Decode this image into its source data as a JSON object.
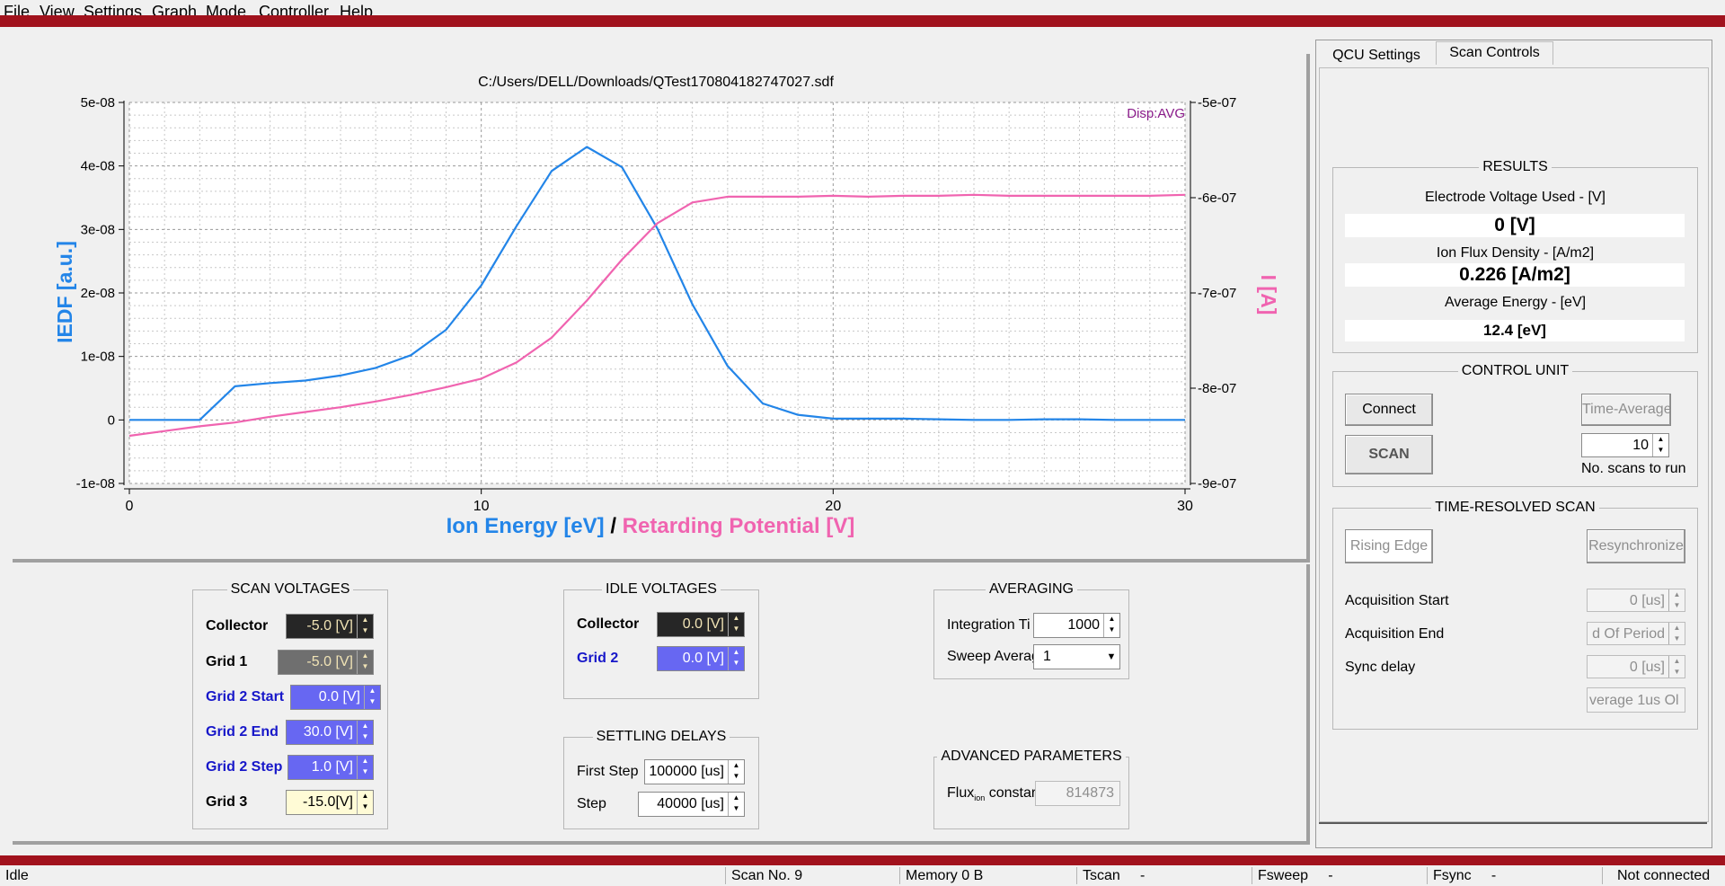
{
  "menu": [
    "File",
    "View",
    "Settings",
    "Graph",
    "Mode",
    "Controller",
    "Help"
  ],
  "plot": {
    "file_title": "C:/Users/DELL/Downloads/QTest170804182747027.sdf",
    "disp_tag": "Disp:AVG",
    "xlabel_part1": "Ion Energy [eV]",
    "xlabel_sep": "/",
    "xlabel_part2": "Retarding Potential [V]",
    "ylabel_left": "IEDF [a.u.]",
    "ylabel_right": "I [A]",
    "x_ticks": [
      "0",
      "10",
      "20",
      "30"
    ],
    "y_left_ticks": [
      "5e-08",
      "4e-08",
      "3e-08",
      "2e-08",
      "1e-08",
      "0",
      "-1e-08"
    ],
    "y_right_ticks": [
      "-5e-07",
      "-6e-07",
      "-7e-07",
      "-8e-07",
      "-9e-07"
    ],
    "colors": {
      "iedf": "#2385e8",
      "current": "#f064b0"
    }
  },
  "chart_data": {
    "type": "line",
    "xlabel": "Ion Energy [eV] / Retarding Potential [V]",
    "ylabel": "IEDF [a.u.]",
    "y2label": "I [A]",
    "xlim": [
      0,
      30
    ],
    "ylim": [
      -1e-08,
      5e-08
    ],
    "y2lim": [
      -9e-07,
      -5e-07
    ],
    "grid": true,
    "series": [
      {
        "name": "IEDF [a.u.]",
        "axis": "left",
        "x": [
          0,
          1,
          2,
          3,
          4,
          5,
          6,
          7,
          8,
          9,
          10,
          11,
          12,
          13,
          14,
          15,
          16,
          17,
          18,
          19,
          20,
          21,
          22,
          23,
          24,
          25,
          26,
          27,
          28,
          29,
          30
        ],
        "y": [
          0,
          0,
          0,
          5.3e-09,
          5.8e-09,
          6.2e-09,
          7e-09,
          8.2e-09,
          1.02e-08,
          1.42e-08,
          2.12e-08,
          3.05e-08,
          3.92e-08,
          4.3e-08,
          3.98e-08,
          3.02e-08,
          1.82e-08,
          8.5e-09,
          2.6e-09,
          8e-10,
          2e-10,
          2e-10,
          2e-10,
          1e-10,
          0,
          0,
          1e-10,
          1e-10,
          0,
          0,
          0
        ]
      },
      {
        "name": "I [A]",
        "axis": "right",
        "x": [
          0,
          1,
          2,
          3,
          4,
          5,
          6,
          7,
          8,
          9,
          10,
          11,
          12,
          13,
          14,
          15,
          16,
          17,
          18,
          19,
          20,
          21,
          22,
          23,
          24,
          25,
          26,
          27,
          28,
          29,
          30
        ],
        "y": [
          -8.5e-07,
          -8.45e-07,
          -8.4e-07,
          -8.36e-07,
          -8.3e-07,
          -8.25e-07,
          -8.2e-07,
          -8.14e-07,
          -8.07e-07,
          -7.99e-07,
          -7.9e-07,
          -7.73e-07,
          -7.47e-07,
          -7.08e-07,
          -6.65e-07,
          -6.27e-07,
          -6.05e-07,
          -5.99e-07,
          -5.99e-07,
          -5.99e-07,
          -5.98e-07,
          -5.99e-07,
          -5.98e-07,
          -5.98e-07,
          -5.97e-07,
          -5.98e-07,
          -5.98e-07,
          -5.98e-07,
          -5.98e-07,
          -5.98e-07,
          -5.97e-07
        ]
      }
    ]
  },
  "scan_voltages": {
    "title": "SCAN VOLTAGES",
    "rows": [
      {
        "label": "Collector",
        "value": "-5.0 [V]"
      },
      {
        "label": "Grid 1",
        "value": "-5.0 [V]"
      },
      {
        "label": "Grid 2 Start",
        "value": "0.0 [V]"
      },
      {
        "label": "Grid 2 End",
        "value": "30.0 [V]"
      },
      {
        "label": "Grid 2 Step",
        "value": "1.0 [V]"
      },
      {
        "label": "Grid 3",
        "value": "-15.0[V]"
      }
    ]
  },
  "idle_voltages": {
    "title": "IDLE VOLTAGES",
    "rows": [
      {
        "label": "Collector",
        "value": "0.0 [V]"
      },
      {
        "label": "Grid 2",
        "value": "0.0 [V]"
      }
    ]
  },
  "settling_delays": {
    "title": "SETTLING DELAYS",
    "rows": [
      {
        "label": "First Step",
        "value": "100000 [us]"
      },
      {
        "label": "Step",
        "value": "40000 [us]"
      }
    ]
  },
  "averaging": {
    "title": "AVERAGING",
    "integration_label": "Integration Ti",
    "integration_value": "1000",
    "sweep_label": "Sweep Averag",
    "sweep_value": "1"
  },
  "advanced": {
    "title": "ADVANCED PARAMETERS",
    "flux_label": "Flux",
    "flux_sub": "ion",
    "flux_label_rest": " constar",
    "flux_value": "814873"
  },
  "tabs": [
    "QCU Settings",
    "Scan Controls"
  ],
  "results": {
    "title": "RESULTS",
    "electrode_label": "Electrode Voltage Used  - [V]",
    "electrode_value": "0 [V]",
    "flux_label": "Ion Flux Density - [A/m2]",
    "flux_value": "0.226 [A/m2]",
    "energy_label": "Average Energy - [eV]",
    "energy_value": "12.4 [eV]"
  },
  "control_unit": {
    "title": "CONTROL UNIT",
    "connect": "Connect",
    "scan": "SCAN",
    "time_average": "Time-Average",
    "scans_value": "10",
    "scans_label": "No. scans to run"
  },
  "time_resolved": {
    "title": "TIME-RESOLVED SCAN",
    "rising_edge": "Rising Edge",
    "resync": "Resynchronize",
    "acq_start_label": "Acquisition Start",
    "acq_start_value": "0 [us]",
    "acq_end_label": "Acquisition End",
    "acq_end_value": "d Of Period",
    "sync_label": "Sync delay",
    "sync_value": "0 [us]",
    "average_value": "verage 1us  Ol"
  },
  "status": {
    "state": "Idle",
    "scan_no": "Scan No. 9",
    "memory": "Memory 0  B",
    "tscan": "Tscan     -",
    "fsweep": "Fsweep     -",
    "fsync": "Fsync     -",
    "connection": "Not connected"
  }
}
